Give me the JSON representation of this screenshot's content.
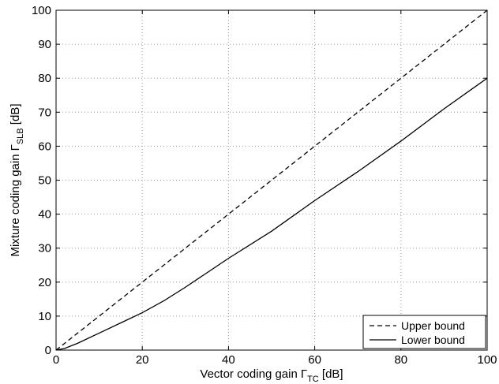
{
  "chart_data": {
    "type": "line",
    "xlabel": "Vector coding gain",
    "xlabel_symbol": "Γ",
    "xlabel_sub": "TC",
    "xlabel_unit": " [dB]",
    "ylabel": "Mixture coding gain",
    "ylabel_symbol": "Γ",
    "ylabel_sub": "SLB",
    "ylabel_unit": " [dB]",
    "xlim": [
      0,
      100
    ],
    "ylim": [
      0,
      100
    ],
    "xticks": [
      "0",
      "20",
      "40",
      "60",
      "80",
      "100"
    ],
    "yticks": [
      "0",
      "10",
      "20",
      "30",
      "40",
      "50",
      "60",
      "70",
      "80",
      "90",
      "100"
    ],
    "grid": true,
    "legend_position": "bottom-right",
    "series": [
      {
        "name": "Upper bound",
        "style": "dashed",
        "x": [
          0,
          100
        ],
        "y": [
          0,
          100
        ]
      },
      {
        "name": "Lower bound",
        "style": "solid",
        "x": [
          0,
          2,
          5,
          10,
          15,
          20,
          25,
          30,
          40,
          50,
          60,
          70,
          80,
          90,
          100
        ],
        "y": [
          0,
          0.5,
          2,
          5,
          8,
          11,
          14.5,
          18.5,
          27,
          35,
          44,
          52.5,
          61.5,
          71,
          80
        ]
      }
    ]
  }
}
